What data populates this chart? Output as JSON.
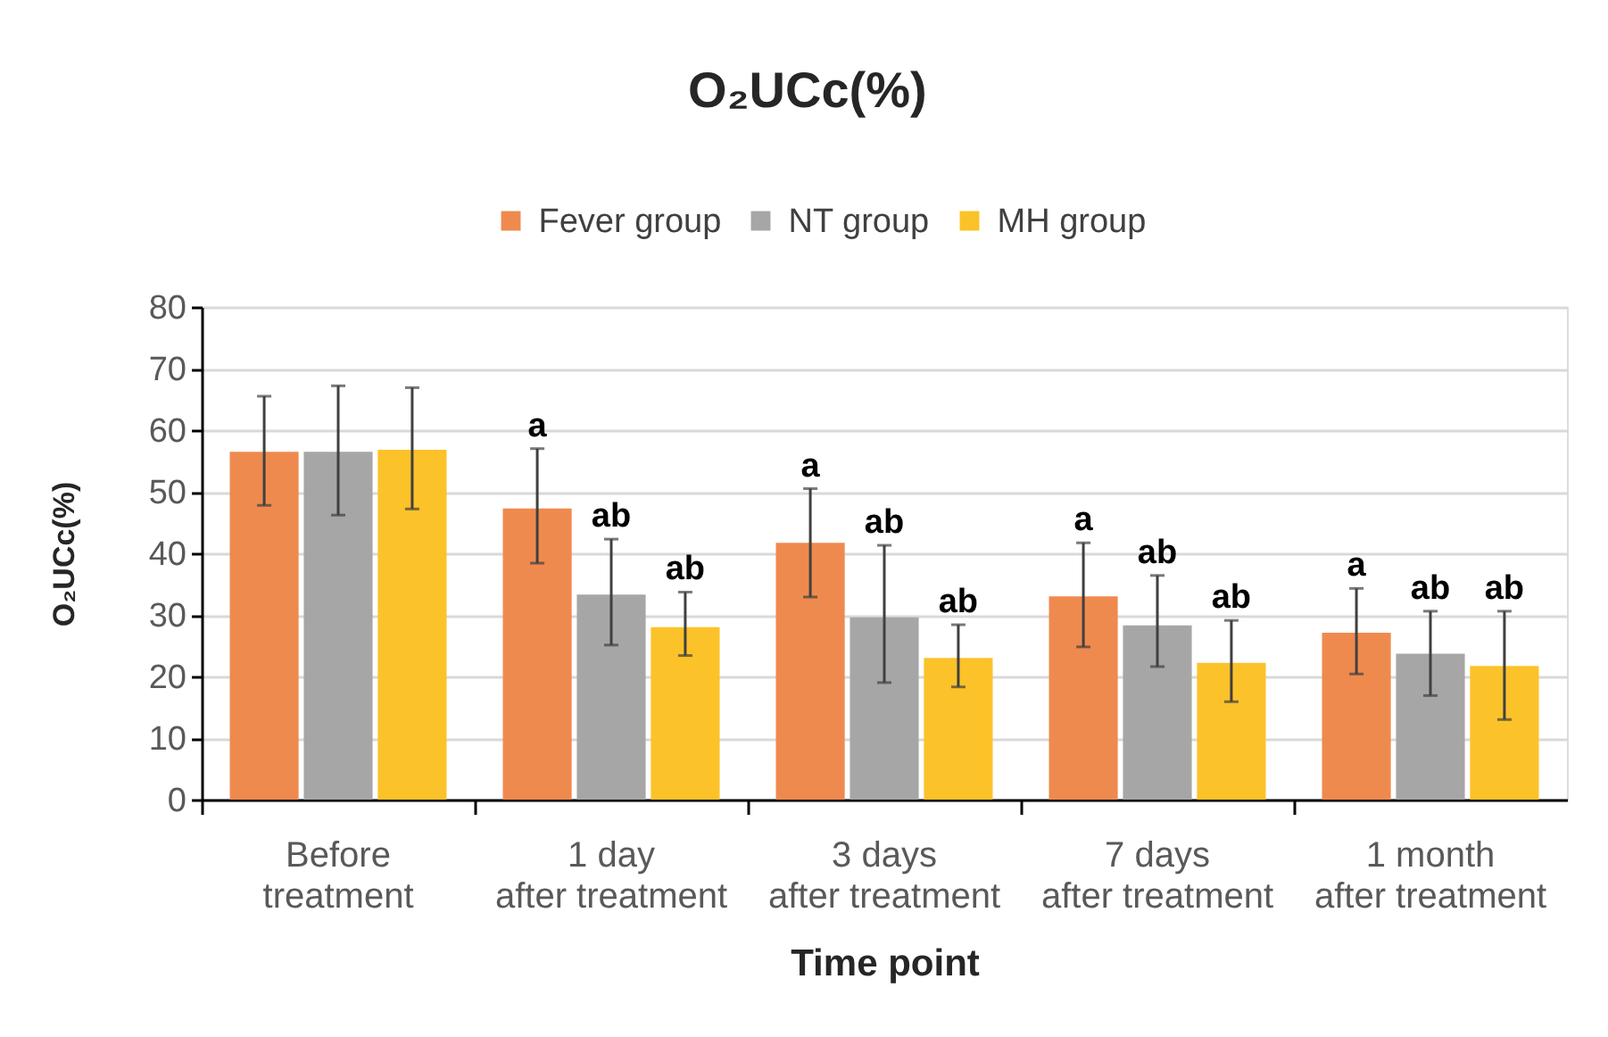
{
  "chart_data": {
    "type": "bar",
    "title": "O₂UCc(%)",
    "xlabel": "Time point",
    "ylabel": "O₂UCc(%)",
    "categories": [
      "Before\ntreatment",
      "1 day\nafter treatment",
      "3 days\nafter treatment",
      "7 days\nafter treatment",
      "1 month\nafter treatment"
    ],
    "series": [
      {
        "name": "Fever group",
        "color": "#ef8a4f",
        "values": [
          56.5,
          47.3,
          41.7,
          33.0,
          27.1
        ],
        "errors": [
          [
            47.8,
            65.5
          ],
          [
            38.4,
            57.0
          ],
          [
            32.9,
            50.5
          ],
          [
            24.8,
            41.7
          ],
          [
            20.4,
            34.3
          ]
        ],
        "value_labels": [
          null,
          "a",
          "a",
          "a",
          "a"
        ]
      },
      {
        "name": "NT group",
        "color": "#a6a6a6",
        "values": [
          56.5,
          33.3,
          29.6,
          28.3,
          23.7
        ],
        "errors": [
          [
            46.2,
            67.2
          ],
          [
            25.1,
            42.3
          ],
          [
            19.0,
            41.3
          ],
          [
            21.6,
            36.4
          ],
          [
            16.9,
            30.6
          ]
        ],
        "value_labels": [
          null,
          "ab",
          "ab",
          "ab",
          "ab"
        ]
      },
      {
        "name": "MH group",
        "color": "#fcc22a",
        "values": [
          56.8,
          28.0,
          23.0,
          22.2,
          21.7
        ],
        "errors": [
          [
            47.2,
            66.9
          ],
          [
            23.4,
            33.7
          ],
          [
            18.3,
            28.4
          ],
          [
            15.9,
            29.1
          ],
          [
            13.0,
            30.6
          ]
        ],
        "value_labels": [
          null,
          "ab",
          "ab",
          "ab",
          "ab"
        ]
      }
    ],
    "ylim": [
      0,
      80
    ],
    "yticks": [
      0,
      10,
      20,
      30,
      40,
      50,
      60,
      70,
      80
    ],
    "grid": "y",
    "legend": "top"
  }
}
